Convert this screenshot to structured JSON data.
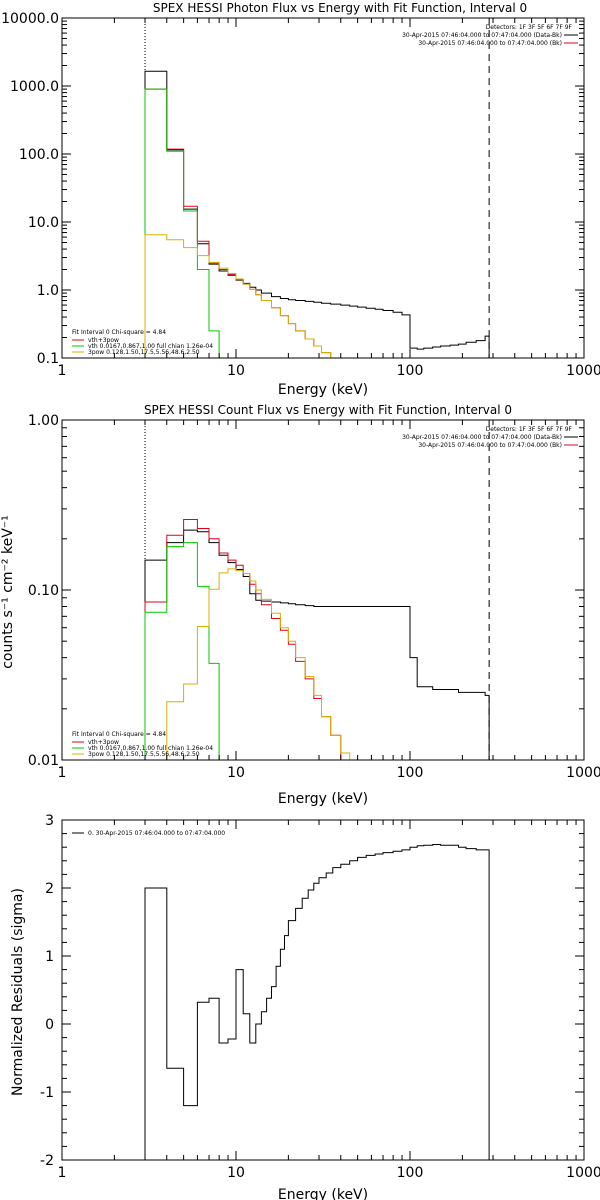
{
  "chart_data": [
    {
      "type": "line",
      "title": "SPEX HESSI Photon Flux vs Energy with Fit Function, Interval 0",
      "xlabel": "Energy (keV)",
      "ylabel": "",
      "xscale": "log",
      "yscale": "log",
      "xlim": [
        1,
        1000
      ],
      "ylim": [
        0.1,
        10000
      ],
      "xticks": [
        "1",
        "10",
        "100",
        "1000"
      ],
      "yticks": [
        "0.1",
        "1.0",
        "10.0",
        "100.0",
        "1000.0",
        "10000.0"
      ],
      "info_lines": [
        "Detectors: 1F 3F 5F 6F 7F 9F",
        "30-Apr-2015 07:46:04.000 to 07:47:04.000 (Data-Bk)",
        "30-Apr-2015 07:46:04.000 to 07:47:04.000 (Bk)"
      ],
      "fit_lines": [
        "Fit Interval 0   Chi-square = 4.84",
        "vth+3pow",
        "vth 0.0167,0.867,1.00  full chian 1.26e-04",
        "3pow 0.128,1.50,17.5,5.56,48.6,2.50"
      ],
      "vlines": [
        {
          "x": 3.0,
          "style": "dotted"
        },
        {
          "x": 285,
          "style": "dashed"
        }
      ],
      "series": [
        {
          "name": "data",
          "color": "#000000",
          "edges": [
            3,
            4,
            5,
            6,
            7,
            8,
            9,
            10,
            11,
            12,
            13,
            14,
            16,
            18,
            20,
            22,
            25,
            28,
            31,
            35,
            40,
            45,
            50,
            56,
            63,
            70,
            80,
            90,
            100,
            110,
            120,
            135,
            150,
            170,
            190,
            210,
            240,
            270,
            285
          ],
          "values": [
            1650,
            115,
            15.5,
            4.8,
            2.4,
            1.9,
            1.65,
            1.4,
            1.25,
            1.1,
            1.0,
            0.9,
            0.8,
            0.75,
            0.72,
            0.7,
            0.68,
            0.66,
            0.64,
            0.62,
            0.6,
            0.58,
            0.56,
            0.54,
            0.52,
            0.5,
            0.47,
            0.43,
            0.14,
            0.135,
            0.14,
            0.145,
            0.15,
            0.155,
            0.16,
            0.17,
            0.18,
            0.21
          ]
        },
        {
          "name": "vth+3pow",
          "color": "#e0001a",
          "edges": [
            3,
            4,
            5,
            6,
            7,
            8,
            9,
            10,
            11,
            12,
            13,
            14,
            16,
            18,
            20,
            22,
            25,
            28,
            31,
            35
          ],
          "values": [
            900,
            118,
            17,
            5.2,
            2.5,
            2.0,
            1.7,
            1.42,
            1.22,
            1.02,
            0.85,
            0.7,
            0.55,
            0.42,
            0.32,
            0.25,
            0.19,
            0.15,
            0.12
          ]
        },
        {
          "name": "vth",
          "color": "#00c800",
          "edges": [
            3,
            4,
            5,
            6,
            7,
            8
          ],
          "values": [
            900,
            110,
            14.5,
            2.0,
            0.25
          ]
        },
        {
          "name": "3pow",
          "color": "#d9b000",
          "edges": [
            3,
            4,
            5,
            6,
            7,
            8,
            9,
            10,
            11,
            12,
            13,
            14,
            16,
            18,
            20,
            22,
            25,
            28,
            31,
            35
          ],
          "values": [
            6.5,
            5.5,
            4.2,
            3.2,
            2.55,
            2.1,
            1.75,
            1.45,
            1.22,
            1.02,
            0.85,
            0.7,
            0.55,
            0.42,
            0.32,
            0.25,
            0.19,
            0.15,
            0.12
          ]
        }
      ]
    },
    {
      "type": "line",
      "title": "SPEX HESSI Count Flux vs Energy with Fit Function, Interval 0",
      "xlabel": "Energy (keV)",
      "ylabel": "counts s⁻¹ cm⁻² keV⁻¹",
      "xscale": "log",
      "yscale": "log",
      "xlim": [
        1,
        1000
      ],
      "ylim": [
        0.01,
        1.0
      ],
      "xticks": [
        "1",
        "10",
        "100",
        "1000"
      ],
      "yticks": [
        "0.01",
        "0.10",
        "1.00"
      ],
      "info_lines": [
        "Detectors: 1F 3F 5F 6F 7F 9F",
        "30-Apr-2015 07:46:04.000 to 07:47:04.000 (Data-Bk)",
        "30-Apr-2015 07:46:04.000 to 07:47:04.000 (Bk)"
      ],
      "fit_lines": [
        "Fit Interval 0   Chi-square = 4.84",
        "vth+3pow",
        "vth 0.0167,0.867,1.00  full chian 1.26e-04",
        "3pow 0.128,1.50,17.5,5.56,48.6,2.50"
      ],
      "vlines": [
        {
          "x": 3.0,
          "style": "dotted"
        },
        {
          "x": 285,
          "style": "dashed"
        }
      ],
      "series": [
        {
          "name": "data",
          "color": "#000000",
          "edges": [
            3,
            4,
            5,
            6,
            7,
            8,
            9,
            10,
            11,
            12,
            13,
            14,
            16,
            18,
            20,
            22,
            25,
            28,
            31,
            35,
            40,
            45,
            50,
            56,
            63,
            70,
            80,
            90,
            100,
            110,
            120,
            135,
            150,
            170,
            190,
            210,
            240,
            270,
            285
          ],
          "values": [
            0.15,
            0.19,
            0.225,
            0.22,
            0.19,
            0.16,
            0.145,
            0.132,
            0.12,
            0.095,
            0.087,
            0.086,
            0.085,
            0.084,
            0.083,
            0.082,
            0.081,
            0.08,
            0.08,
            0.08,
            0.08,
            0.08,
            0.08,
            0.08,
            0.08,
            0.08,
            0.08,
            0.08,
            0.04,
            0.027,
            0.027,
            0.026,
            0.026,
            0.026,
            0.025,
            0.025,
            0.025,
            0.024
          ]
        },
        {
          "name": "vth+3pow",
          "color": "#e0001a",
          "edges": [
            3,
            4,
            5,
            6,
            7,
            8,
            9,
            10,
            11,
            12,
            13,
            14,
            16,
            18,
            20,
            22,
            25,
            28,
            31,
            35,
            40
          ],
          "values": [
            0.085,
            0.21,
            0.26,
            0.23,
            0.2,
            0.165,
            0.15,
            0.14,
            0.125,
            0.108,
            0.095,
            0.082,
            0.068,
            0.058,
            0.048,
            0.038,
            0.03,
            0.023,
            0.018,
            0.014
          ]
        },
        {
          "name": "vth",
          "color": "#00c800",
          "edges": [
            3,
            4,
            5,
            6,
            7,
            8
          ],
          "values": [
            0.074,
            0.18,
            0.19,
            0.105,
            0.037
          ]
        },
        {
          "name": "3pow",
          "color": "#d9b000",
          "edges": [
            4,
            5,
            6,
            7,
            8,
            9,
            10,
            11,
            12,
            13,
            14,
            16,
            18,
            20,
            22,
            25,
            28,
            31,
            35,
            40,
            45
          ],
          "values": [
            0.022,
            0.028,
            0.061,
            0.101,
            0.126,
            0.133,
            0.13,
            0.125,
            0.113,
            0.1,
            0.088,
            0.073,
            0.06,
            0.05,
            0.04,
            0.031,
            0.024,
            0.018,
            0.014,
            0.011
          ]
        }
      ]
    },
    {
      "type": "line",
      "title": "",
      "xlabel": "Energy (keV)",
      "ylabel": "Normalized Residuals (sigma)",
      "xscale": "log",
      "yscale": "linear",
      "xlim": [
        1,
        1000
      ],
      "ylim": [
        -2,
        3
      ],
      "xticks": [
        "1",
        "10",
        "100",
        "1000"
      ],
      "yticks": [
        "-2",
        "-1",
        "0",
        "1",
        "2",
        "3"
      ],
      "legend": "0. 30-Apr-2015 07:46:04.000 to 07:47:04.000",
      "series": [
        {
          "name": "0. 30-Apr-2015 07:46:04.000 to 07:47:04.000",
          "color": "#000000",
          "edges": [
            3,
            4,
            5,
            6,
            7,
            8,
            9,
            10,
            11,
            12,
            13,
            14,
            15,
            16,
            17,
            18,
            19,
            20,
            22,
            24,
            26,
            28,
            30,
            33,
            36,
            40,
            45,
            50,
            56,
            63,
            70,
            80,
            90,
            100,
            110,
            120,
            135,
            150,
            170,
            190,
            210,
            240,
            285
          ],
          "values": [
            2.0,
            -0.65,
            -1.2,
            0.32,
            0.38,
            -0.28,
            -0.22,
            0.8,
            0.15,
            -0.28,
            0.0,
            0.18,
            0.38,
            0.55,
            0.85,
            1.1,
            1.3,
            1.52,
            1.7,
            1.85,
            1.97,
            2.07,
            2.15,
            2.22,
            2.3,
            2.35,
            2.4,
            2.45,
            2.48,
            2.5,
            2.52,
            2.54,
            2.56,
            2.6,
            2.62,
            2.63,
            2.64,
            2.63,
            2.63,
            2.6,
            2.58,
            2.56
          ]
        }
      ]
    }
  ]
}
